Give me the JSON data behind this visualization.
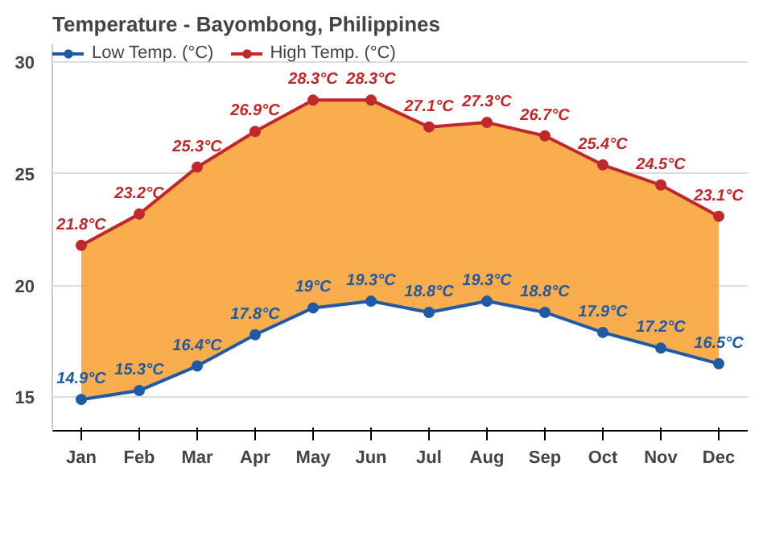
{
  "chart_data": {
    "type": "line",
    "title": "Temperature - Bayombong, Philippines",
    "categories": [
      "Jan",
      "Feb",
      "Mar",
      "Apr",
      "May",
      "Jun",
      "Jul",
      "Aug",
      "Sep",
      "Oct",
      "Nov",
      "Dec"
    ],
    "series": [
      {
        "name": "Low Temp. (°C)",
        "color": "#1f5aa6",
        "values": [
          14.9,
          15.3,
          16.4,
          17.8,
          19,
          19.3,
          18.8,
          19.3,
          18.8,
          17.9,
          17.2,
          16.5
        ],
        "value_labels": [
          "14.9°C",
          "15.3°C",
          "16.4°C",
          "17.8°C",
          "19°C",
          "19.3°C",
          "18.8°C",
          "19.3°C",
          "18.8°C",
          "17.9°C",
          "17.2°C",
          "16.5°C"
        ]
      },
      {
        "name": "High Temp. (°C)",
        "color": "#c0282a",
        "values": [
          21.8,
          23.2,
          25.3,
          26.9,
          28.3,
          28.3,
          27.1,
          27.3,
          26.7,
          25.4,
          24.5,
          23.1
        ],
        "value_labels": [
          "21.8°C",
          "23.2°C",
          "25.3°C",
          "26.9°C",
          "28.3°C",
          "28.3°C",
          "27.1°C",
          "27.3°C",
          "26.7°C",
          "25.4°C",
          "24.5°C",
          "23.1°C"
        ],
        "lower": [
          14.9,
          15.3,
          16.4,
          17.8,
          19,
          19.3,
          18.8,
          19.3,
          18.8,
          17.9,
          17.2,
          16.5
        ],
        "upper": [
          21.8,
          23.2,
          25.3,
          26.9,
          28.3,
          28.3,
          27.1,
          27.3,
          26.7,
          25.4,
          24.5,
          23.1
        ]
      }
    ],
    "ylim": [
      13.5,
      30.8
    ],
    "yticks": [
      15,
      20,
      25,
      30
    ],
    "grid": "y",
    "legend": "top left",
    "marker": "circle",
    "line_style": "solid"
  }
}
